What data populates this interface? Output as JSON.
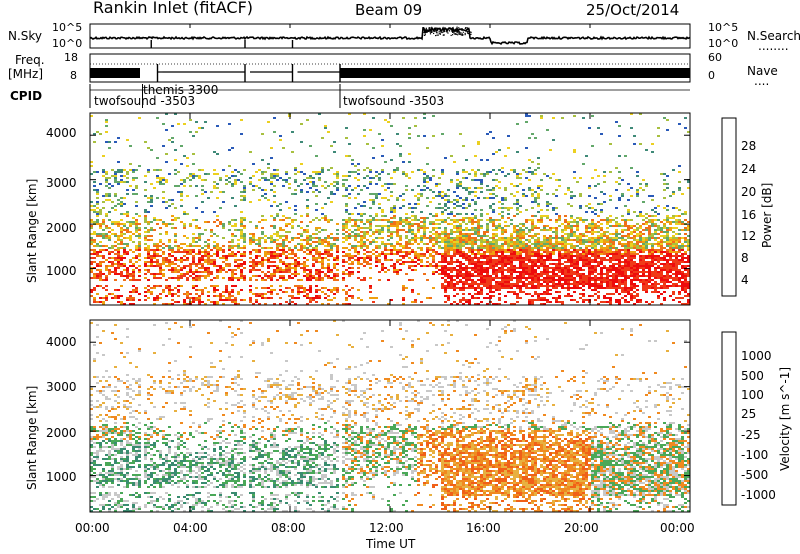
{
  "header": {
    "station": "Rankin Inlet (fitACF)",
    "beam": "Beam 09",
    "date": "25/Oct/2014"
  },
  "left_labels": {
    "nsky": "N.Sky",
    "freq": "Freq.",
    "freq_unit": "[MHz]",
    "cpid": "CPID"
  },
  "right_labels": {
    "nsearch": "N.Search",
    "nsearch_dots": "........",
    "nave": "Nave",
    "nave_dots": "...."
  },
  "noise_axis": {
    "left_top": "10^5",
    "left_bottom": "10^0",
    "right_top": "10^5",
    "right_bottom": "10^0"
  },
  "freq_axis": {
    "left_top": "18",
    "left_bottom": "8",
    "right_top": "60",
    "right_bottom": "0"
  },
  "cpid_labels": [
    {
      "text": "twofsound -3503"
    },
    {
      "text": "themis 3300"
    },
    {
      "text": "twofsound -3503"
    }
  ],
  "x_axis": {
    "label": "Time UT",
    "ticks": [
      "00:00",
      "04:00",
      "08:00",
      "12:00",
      "16:00",
      "20:00",
      "00:00"
    ]
  },
  "power_panel": {
    "ylabel": "Slant Range [km]",
    "yticks": [
      "1000",
      "2000",
      "3000",
      "4000"
    ],
    "cb_label": "Power [dB]",
    "cb_ticks": [
      "4",
      "8",
      "12",
      "16",
      "20",
      "24",
      "28"
    ],
    "cb_colors": [
      "#1010f0",
      "#2a5ab8",
      "#3f8a78",
      "#63a86a",
      "#a8c040",
      "#ecd020",
      "#f0a010",
      "#f07018",
      "#f03a18",
      "#ee0c0c"
    ]
  },
  "velocity_panel": {
    "ylabel": "Slant Range [km]",
    "yticks": [
      "1000",
      "2000",
      "3000",
      "4000"
    ],
    "cb_label": "Velocity [m s^-1]",
    "cb_ticks": [
      "1000",
      "500",
      "100",
      "25",
      "-25",
      "-100",
      "-500",
      "-1000"
    ],
    "cb_colors": [
      "#2040c0",
      "#2a70a0",
      "#3a8c70",
      "#4aa858",
      "#6cc840",
      "#c8c8c8",
      "#e8b040",
      "#f08a20",
      "#f06018",
      "#ee1010"
    ]
  },
  "chart_data": [
    {
      "type": "heatmap",
      "title": "Power",
      "xlabel": "Time UT",
      "ylabel": "Slant Range [km]",
      "xlim": [
        "00:00",
        "24:00"
      ],
      "ylim": [
        180,
        4500
      ],
      "colorbar": {
        "label": "Power [dB]",
        "range": [
          0,
          30
        ]
      }
    },
    {
      "type": "heatmap",
      "title": "Velocity",
      "xlabel": "Time UT",
      "ylabel": "Slant Range [km]",
      "xlim": [
        "00:00",
        "24:00"
      ],
      "ylim": [
        180,
        4500
      ],
      "colorbar": {
        "label": "Velocity [m s^-1]",
        "range": [
          -1000,
          1000
        ]
      }
    }
  ]
}
